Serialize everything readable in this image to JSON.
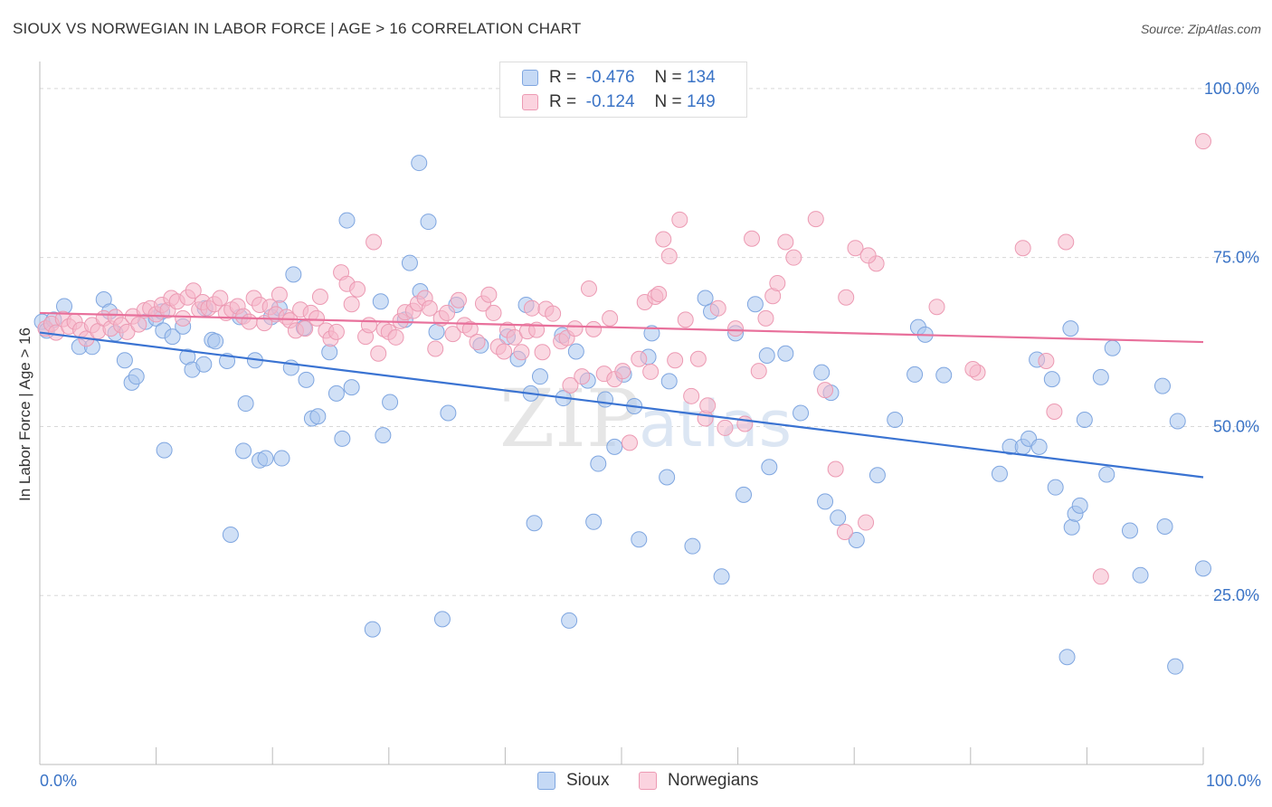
{
  "header": {
    "title": "SIOUX VS NORWEGIAN IN LABOR FORCE | AGE > 16 CORRELATION CHART",
    "source": "Source: ZipAtlas.com"
  },
  "legend": {
    "r_label": "R =",
    "n_label": "N =",
    "rows": [
      {
        "r": "-0.476",
        "n": "134",
        "color": "#aac6ef"
      },
      {
        "r": "-0.124",
        "n": "149",
        "color": "#f6b8cb"
      }
    ]
  },
  "bottom_legend": [
    "Sioux",
    "Norwegians"
  ],
  "watermark": {
    "zip": "ZIP",
    "atlas": "atlas"
  },
  "colors": {
    "sioux_fill": "#aac6ef",
    "sioux_stroke": "#7fa6e0",
    "sioux_line": "#3a73d2",
    "nor_fill": "#f6b8cb",
    "nor_stroke": "#ec9ab3",
    "nor_line": "#e8709b",
    "axis_text": "#3a73c6",
    "grid": "#d8d8d8"
  },
  "chart_data": {
    "type": "scatter",
    "title": "SIOUX VS NORWEGIAN IN LABOR FORCE | AGE > 16 CORRELATION CHART",
    "xlabel": "",
    "ylabel": "In Labor Force | Age > 16",
    "xlim": [
      0,
      100
    ],
    "ylim": [
      0,
      104
    ],
    "x_tick_labels": [
      "0.0%",
      "100.0%"
    ],
    "y_ticks": [
      25,
      50,
      75,
      100
    ],
    "y_tick_labels": [
      "25.0%",
      "50.0%",
      "75.0%",
      "100.0%"
    ],
    "grid": true,
    "legend_position": "top-center",
    "series": [
      {
        "name": "Sioux",
        "r": -0.476,
        "n": 134,
        "trend": {
          "x": [
            0,
            100
          ],
          "y": [
            63.9,
            42.5
          ]
        },
        "points": [
          [
            0.2,
            65.5
          ],
          [
            0.6,
            64.2
          ],
          [
            1.2,
            65.8
          ],
          [
            2.1,
            67.8
          ],
          [
            3.4,
            61.8
          ],
          [
            5.5,
            68.8
          ],
          [
            6.0,
            67.0
          ],
          [
            6.5,
            63.8
          ],
          [
            4.5,
            61.8
          ],
          [
            7.3,
            59.8
          ],
          [
            7.9,
            56.5
          ],
          [
            8.3,
            57.4
          ],
          [
            9.1,
            65.5
          ],
          [
            10.0,
            66.0
          ],
          [
            10.5,
            67.0
          ],
          [
            10.7,
            46.5
          ],
          [
            10.6,
            64.2
          ],
          [
            11.4,
            63.3
          ],
          [
            12.3,
            64.8
          ],
          [
            12.7,
            60.3
          ],
          [
            13.1,
            58.4
          ],
          [
            14.1,
            59.2
          ],
          [
            14.8,
            62.8
          ],
          [
            15.1,
            62.6
          ],
          [
            14.2,
            67.5
          ],
          [
            16.1,
            59.7
          ],
          [
            17.2,
            66.2
          ],
          [
            17.5,
            46.4
          ],
          [
            16.4,
            34.0
          ],
          [
            17.7,
            53.4
          ],
          [
            18.5,
            59.8
          ],
          [
            18.9,
            45.0
          ],
          [
            19.4,
            45.3
          ],
          [
            20.8,
            45.3
          ],
          [
            19.9,
            66.2
          ],
          [
            20.6,
            67.5
          ],
          [
            21.6,
            58.7
          ],
          [
            21.8,
            72.5
          ],
          [
            22.7,
            64.6
          ],
          [
            22.9,
            56.9
          ],
          [
            23.4,
            51.2
          ],
          [
            23.9,
            51.5
          ],
          [
            24.9,
            61.0
          ],
          [
            25.5,
            54.9
          ],
          [
            26.0,
            48.2
          ],
          [
            26.4,
            80.5
          ],
          [
            26.8,
            55.8
          ],
          [
            28.6,
            20.0
          ],
          [
            29.3,
            68.5
          ],
          [
            29.5,
            48.7
          ],
          [
            30.1,
            53.6
          ],
          [
            31.4,
            65.8
          ],
          [
            31.8,
            74.2
          ],
          [
            32.6,
            89.0
          ],
          [
            32.7,
            70.0
          ],
          [
            33.4,
            80.3
          ],
          [
            34.1,
            64.0
          ],
          [
            34.6,
            21.5
          ],
          [
            35.1,
            52.0
          ],
          [
            35.8,
            68.0
          ],
          [
            37.9,
            62.0
          ],
          [
            40.2,
            63.3
          ],
          [
            41.1,
            60.0
          ],
          [
            42.2,
            54.9
          ],
          [
            42.5,
            35.7
          ],
          [
            41.8,
            68.0
          ],
          [
            43.0,
            57.4
          ],
          [
            44.9,
            63.5
          ],
          [
            45.0,
            54.2
          ],
          [
            45.5,
            21.3
          ],
          [
            46.1,
            61.1
          ],
          [
            47.1,
            56.8
          ],
          [
            47.6,
            35.9
          ],
          [
            48.0,
            44.5
          ],
          [
            48.6,
            54.0
          ],
          [
            49.4,
            47.0
          ],
          [
            50.2,
            57.7
          ],
          [
            51.1,
            53.0
          ],
          [
            51.5,
            33.3
          ],
          [
            52.3,
            60.3
          ],
          [
            52.6,
            63.8
          ],
          [
            53.9,
            42.5
          ],
          [
            54.1,
            56.7
          ],
          [
            56.1,
            32.3
          ],
          [
            57.2,
            69.0
          ],
          [
            57.7,
            67.0
          ],
          [
            58.6,
            27.8
          ],
          [
            59.8,
            63.8
          ],
          [
            60.5,
            39.9
          ],
          [
            61.5,
            68.1
          ],
          [
            62.5,
            60.5
          ],
          [
            62.7,
            44.0
          ],
          [
            64.1,
            60.8
          ],
          [
            65.4,
            52.0
          ],
          [
            67.2,
            58.0
          ],
          [
            67.5,
            38.9
          ],
          [
            68.0,
            55.0
          ],
          [
            68.6,
            36.5
          ],
          [
            70.2,
            33.2
          ],
          [
            72.0,
            42.8
          ],
          [
            73.5,
            51.0
          ],
          [
            75.2,
            57.7
          ],
          [
            75.5,
            64.7
          ],
          [
            76.1,
            63.6
          ],
          [
            77.7,
            57.6
          ],
          [
            82.5,
            43.0
          ],
          [
            83.4,
            47.0
          ],
          [
            84.5,
            47.0
          ],
          [
            85.0,
            48.2
          ],
          [
            85.7,
            59.9
          ],
          [
            85.9,
            47.0
          ],
          [
            87.0,
            57.0
          ],
          [
            87.3,
            41.0
          ],
          [
            88.3,
            15.9
          ],
          [
            88.6,
            64.5
          ],
          [
            88.7,
            35.1
          ],
          [
            89.0,
            37.1
          ],
          [
            89.4,
            38.3
          ],
          [
            89.8,
            51.0
          ],
          [
            91.2,
            57.3
          ],
          [
            91.7,
            42.9
          ],
          [
            92.2,
            61.6
          ],
          [
            93.7,
            34.6
          ],
          [
            94.6,
            28.0
          ],
          [
            96.5,
            56.0
          ],
          [
            96.7,
            35.2
          ],
          [
            97.6,
            14.5
          ],
          [
            97.8,
            50.8
          ],
          [
            100.0,
            29.0
          ]
        ]
      },
      {
        "name": "Norwegians",
        "r": -0.124,
        "n": 149,
        "trend": {
          "x": [
            0,
            100
          ],
          "y": [
            66.8,
            62.5
          ]
        },
        "points": [
          [
            0.5,
            64.5
          ],
          [
            1.0,
            65.2
          ],
          [
            1.4,
            63.9
          ],
          [
            2.0,
            65.9
          ],
          [
            2.5,
            64.8
          ],
          [
            3.0,
            65.5
          ],
          [
            3.5,
            64.3
          ],
          [
            4.0,
            63.0
          ],
          [
            4.5,
            65.0
          ],
          [
            5.0,
            64.1
          ],
          [
            5.5,
            66.0
          ],
          [
            6.1,
            64.5
          ],
          [
            6.5,
            66.2
          ],
          [
            7.0,
            65.0
          ],
          [
            7.5,
            64.0
          ],
          [
            8.0,
            66.3
          ],
          [
            8.5,
            65.1
          ],
          [
            9.0,
            67.2
          ],
          [
            9.5,
            67.5
          ],
          [
            10.0,
            66.6
          ],
          [
            10.5,
            68.0
          ],
          [
            11.0,
            67.2
          ],
          [
            11.3,
            69.0
          ],
          [
            11.8,
            68.5
          ],
          [
            12.3,
            66.0
          ],
          [
            12.7,
            69.1
          ],
          [
            13.2,
            70.1
          ],
          [
            13.7,
            67.3
          ],
          [
            14.0,
            68.4
          ],
          [
            14.5,
            67.5
          ],
          [
            15.0,
            68.1
          ],
          [
            15.5,
            69.0
          ],
          [
            16.0,
            66.8
          ],
          [
            16.5,
            67.3
          ],
          [
            17.0,
            67.8
          ],
          [
            17.5,
            66.3
          ],
          [
            18.0,
            65.5
          ],
          [
            18.4,
            69.0
          ],
          [
            18.9,
            68.0
          ],
          [
            19.3,
            65.3
          ],
          [
            19.8,
            67.7
          ],
          [
            20.3,
            66.6
          ],
          [
            20.6,
            69.5
          ],
          [
            21.2,
            66.2
          ],
          [
            21.5,
            65.7
          ],
          [
            22.0,
            64.2
          ],
          [
            22.4,
            67.3
          ],
          [
            22.8,
            64.5
          ],
          [
            23.3,
            66.8
          ],
          [
            23.8,
            66.0
          ],
          [
            24.1,
            69.2
          ],
          [
            24.6,
            64.2
          ],
          [
            25.0,
            63.0
          ],
          [
            25.5,
            64.0
          ],
          [
            25.9,
            72.8
          ],
          [
            26.4,
            71.1
          ],
          [
            26.8,
            68.1
          ],
          [
            27.3,
            70.3
          ],
          [
            28.0,
            63.3
          ],
          [
            28.3,
            65.0
          ],
          [
            28.7,
            77.3
          ],
          [
            29.1,
            60.8
          ],
          [
            29.6,
            64.4
          ],
          [
            30.0,
            64.0
          ],
          [
            30.6,
            63.2
          ],
          [
            31.0,
            65.6
          ],
          [
            31.4,
            66.9
          ],
          [
            32.1,
            67.1
          ],
          [
            32.5,
            68.2
          ],
          [
            33.1,
            69.0
          ],
          [
            33.5,
            67.5
          ],
          [
            34.0,
            61.5
          ],
          [
            34.5,
            66.0
          ],
          [
            35.0,
            66.8
          ],
          [
            35.5,
            63.7
          ],
          [
            36.0,
            68.7
          ],
          [
            36.5,
            65.0
          ],
          [
            37.0,
            64.4
          ],
          [
            37.6,
            62.5
          ],
          [
            38.1,
            68.2
          ],
          [
            38.6,
            69.5
          ],
          [
            39.0,
            66.8
          ],
          [
            39.4,
            61.8
          ],
          [
            39.9,
            61.1
          ],
          [
            40.2,
            64.3
          ],
          [
            40.8,
            63.2
          ],
          [
            41.4,
            61.0
          ],
          [
            41.9,
            64.1
          ],
          [
            42.3,
            67.5
          ],
          [
            42.7,
            64.3
          ],
          [
            43.2,
            61.0
          ],
          [
            43.5,
            67.4
          ],
          [
            44.1,
            66.7
          ],
          [
            44.8,
            62.6
          ],
          [
            45.3,
            63.1
          ],
          [
            45.6,
            56.1
          ],
          [
            46.0,
            64.5
          ],
          [
            46.6,
            57.4
          ],
          [
            47.2,
            70.4
          ],
          [
            47.6,
            64.4
          ],
          [
            48.5,
            57.8
          ],
          [
            49.0,
            66.0
          ],
          [
            49.4,
            57.0
          ],
          [
            50.1,
            58.2
          ],
          [
            50.7,
            47.6
          ],
          [
            51.5,
            60.0
          ],
          [
            52.0,
            68.4
          ],
          [
            52.5,
            58.1
          ],
          [
            52.9,
            69.2
          ],
          [
            53.2,
            69.6
          ],
          [
            53.6,
            77.7
          ],
          [
            54.1,
            75.2
          ],
          [
            54.6,
            59.8
          ],
          [
            55.0,
            80.6
          ],
          [
            55.5,
            65.8
          ],
          [
            56.0,
            54.5
          ],
          [
            56.6,
            60.0
          ],
          [
            57.2,
            51.2
          ],
          [
            57.4,
            53.1
          ],
          [
            58.3,
            67.5
          ],
          [
            58.9,
            49.8
          ],
          [
            59.8,
            64.5
          ],
          [
            60.6,
            50.4
          ],
          [
            61.2,
            77.8
          ],
          [
            61.8,
            58.2
          ],
          [
            62.4,
            66.0
          ],
          [
            63.0,
            69.3
          ],
          [
            63.4,
            71.2
          ],
          [
            64.1,
            77.3
          ],
          [
            64.8,
            75.0
          ],
          [
            66.7,
            80.7
          ],
          [
            67.5,
            55.4
          ],
          [
            68.4,
            43.7
          ],
          [
            69.2,
            34.4
          ],
          [
            69.3,
            69.1
          ],
          [
            70.1,
            76.4
          ],
          [
            71.0,
            35.8
          ],
          [
            71.9,
            74.1
          ],
          [
            71.2,
            75.3
          ],
          [
            77.1,
            67.7
          ],
          [
            80.6,
            58.0
          ],
          [
            80.2,
            58.5
          ],
          [
            84.5,
            76.4
          ],
          [
            86.5,
            59.7
          ],
          [
            87.2,
            52.2
          ],
          [
            88.2,
            77.3
          ],
          [
            91.2,
            27.8
          ],
          [
            100.0,
            92.2
          ]
        ]
      }
    ]
  }
}
